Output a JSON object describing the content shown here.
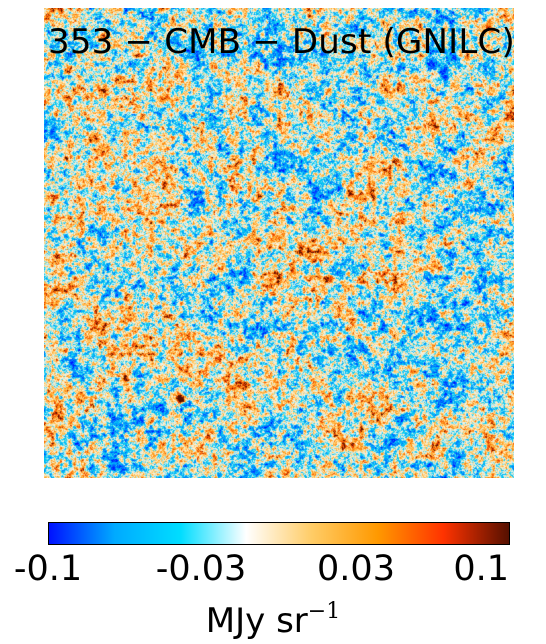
{
  "map": {
    "title": "353 − CMB − Dust (GNILC)"
  },
  "colorbar": {
    "ticks": [
      "-0.1",
      "-0.03",
      "0.03",
      "0.1"
    ],
    "unit_text": "MJy sr",
    "unit_exponent": "−1",
    "range": [
      -0.1,
      0.1
    ],
    "colors": [
      "#0011ff",
      "#00aaff",
      "#00ddff",
      "#ffffff",
      "#ffcc66",
      "#ff9900",
      "#ff3300",
      "#551000"
    ]
  }
}
